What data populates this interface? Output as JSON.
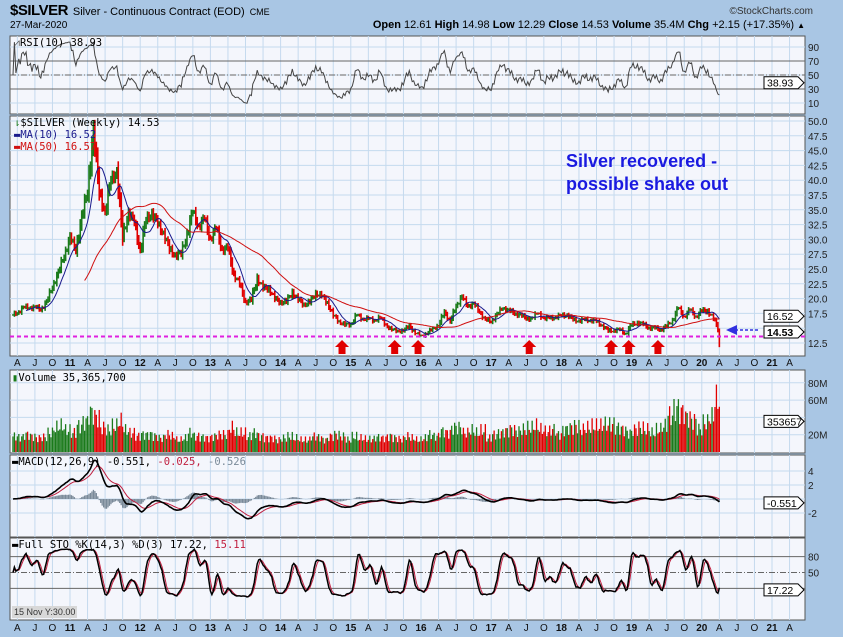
{
  "header": {
    "symbol": "$SILVER",
    "description": "Silver - Continuous Contract (EOD)",
    "exchange": "CME",
    "watermark": "©StockCharts.com",
    "date": "27-Mar-2020",
    "open_label": "Open",
    "open": "12.61",
    "high_label": "High",
    "high": "14.98",
    "low_label": "Low",
    "low": "12.29",
    "close_label": "Close",
    "close": "14.53",
    "volume_label": "Volume",
    "volume": "35.4M",
    "chg_label": "Chg",
    "chg": "+2.15 (+17.35%)"
  },
  "annotation": "Silver recovered - possible shake out",
  "hover_readout": "15 Nov Y:30.00",
  "colors": {
    "up": "#1a7a1a",
    "down": "#e00000",
    "ma10": "#1a1a8c",
    "ma50": "#d01010",
    "support": "#e020e0",
    "arrow": "#e00000",
    "annotation": "#1a1ae0",
    "pointer": "#3030e0"
  },
  "chart_data": [
    {
      "type": "line",
      "panel": "rsi",
      "legend": "RSI(10) 38.93",
      "value_box": "38.93",
      "ylim": [
        0,
        100
      ],
      "yticks": [
        "90",
        "70",
        "50",
        "30",
        "10"
      ],
      "levels": [
        70,
        50,
        30
      ]
    },
    {
      "type": "ohlc",
      "panel": "price",
      "legend": "$SILVER (Weekly) 14.53",
      "ma10_legend": "MA(10) 16.52",
      "ma50_legend": "MA(50) 16.57",
      "ma10_box": "16.52",
      "last_box": "14.53",
      "ylim": [
        10,
        50
      ],
      "yticks": [
        "50.0",
        "47.5",
        "45.0",
        "42.5",
        "40.0",
        "37.5",
        "35.0",
        "32.5",
        "30.0",
        "27.5",
        "25.0",
        "22.5",
        "20.0",
        "17.5",
        "12.5"
      ],
      "start_month": "2010-03",
      "monthly_close": [
        17.5,
        18.6,
        18.4,
        18.7,
        18.0,
        19.6,
        21.8,
        24.6,
        27.0,
        30.6,
        28.0,
        34.0,
        37.8,
        48.6,
        38.0,
        34.6,
        40.0,
        41.6,
        30.4,
        34.6,
        32.8,
        28.2,
        33.2,
        34.6,
        32.5,
        31.2,
        28.2,
        27.5,
        27.4,
        31.0,
        34.6,
        32.3,
        33.4,
        30.2,
        31.8,
        28.4,
        28.4,
        24.2,
        22.4,
        19.5,
        19.7,
        23.5,
        21.7,
        21.8,
        19.9,
        19.5,
        19.4,
        21.2,
        19.7,
        19.1,
        19.3,
        21.0,
        20.4,
        19.4,
        17.1,
        16.2,
        15.5,
        15.7,
        17.2,
        16.6,
        16.6,
        16.3,
        16.8,
        15.6,
        14.7,
        14.6,
        14.5,
        15.5,
        14.1,
        13.8,
        14.0,
        15.0,
        15.4,
        17.8,
        16.1,
        18.7,
        20.4,
        18.7,
        19.2,
        17.7,
        16.5,
        16.0,
        17.5,
        18.3,
        18.2,
        17.3,
        17.4,
        16.5,
        16.8,
        17.5,
        16.7,
        16.7,
        16.9,
        17.1,
        17.3,
        16.4,
        16.3,
        16.4,
        16.4,
        16.1,
        15.5,
        14.5,
        14.7,
        14.7,
        14.1,
        15.5,
        16.0,
        15.6,
        15.1,
        15.0,
        14.8,
        15.3,
        16.4,
        18.4,
        17.0,
        18.1,
        17.0,
        17.9,
        18.0,
        16.6,
        14.53
      ],
      "last_week_low": 11.8,
      "support_level": 13.6,
      "buy_arrows": [
        "2014-11",
        "2015-08",
        "2015-12",
        "2017-07",
        "2018-09",
        "2018-12",
        "2019-05"
      ],
      "pointer_level": 14.7
    },
    {
      "type": "bar",
      "panel": "volume",
      "legend": "Volume 35,365,700",
      "value_box": "353657",
      "unit": "M",
      "ylim": [
        0,
        90
      ],
      "yticks": [
        "80M",
        "60M",
        "20M"
      ],
      "monthly_avg_weekly_volume_m": [
        18,
        17,
        20,
        18,
        16,
        17,
        22,
        28,
        30,
        25,
        22,
        30,
        35,
        45,
        40,
        28,
        25,
        30,
        35,
        25,
        22,
        18,
        20,
        20,
        18,
        16,
        20,
        18,
        14,
        16,
        22,
        18,
        17,
        16,
        18,
        20,
        20,
        28,
        22,
        22,
        18,
        22,
        18,
        16,
        16,
        14,
        16,
        18,
        16,
        14,
        14,
        18,
        17,
        14,
        18,
        20,
        18,
        14,
        18,
        16,
        15,
        15,
        17,
        16,
        18,
        16,
        15,
        18,
        16,
        14,
        16,
        20,
        18,
        24,
        22,
        28,
        28,
        22,
        25,
        22,
        25,
        16,
        20,
        22,
        24,
        26,
        24,
        26,
        28,
        30,
        26,
        24,
        26,
        20,
        26,
        28,
        30,
        26,
        28,
        30,
        30,
        32,
        32,
        28,
        26,
        22,
        26,
        28,
        26,
        22,
        26,
        30,
        42,
        50,
        46,
        40,
        36,
        26,
        34,
        40,
        60
      ]
    },
    {
      "type": "line",
      "panel": "macd",
      "legend_main": "MACD(12,26,9) -0.551,",
      "legend_signal": "-0.025,",
      "legend_hist": "-0.526",
      "value_box": "-0.551",
      "ylim": [
        -3.5,
        5.5
      ],
      "yticks": [
        "4",
        "2",
        "-2"
      ]
    },
    {
      "type": "line",
      "panel": "stochastic",
      "legend_main": "Full STO %K(14,3) %D(3) 17.22,",
      "legend_d": "15.11",
      "value_box": "17.22",
      "ylim": [
        -5,
        105
      ],
      "yticks": [
        "80",
        "50"
      ],
      "levels": [
        80,
        50,
        20
      ]
    }
  ],
  "x_axis": {
    "first_tick": "2010-04",
    "tick_labels": [
      "A",
      "J",
      "O",
      "11",
      "A",
      "J",
      "O",
      "12",
      "A",
      "J",
      "O",
      "13",
      "A",
      "J",
      "O",
      "14",
      "A",
      "J",
      "O",
      "15",
      "A",
      "J",
      "O",
      "16",
      "A",
      "J",
      "O",
      "17",
      "A",
      "J",
      "O",
      "18",
      "A",
      "J",
      "O",
      "19",
      "A",
      "J",
      "O",
      "20",
      "A",
      "J",
      "O",
      "21",
      "A"
    ]
  }
}
